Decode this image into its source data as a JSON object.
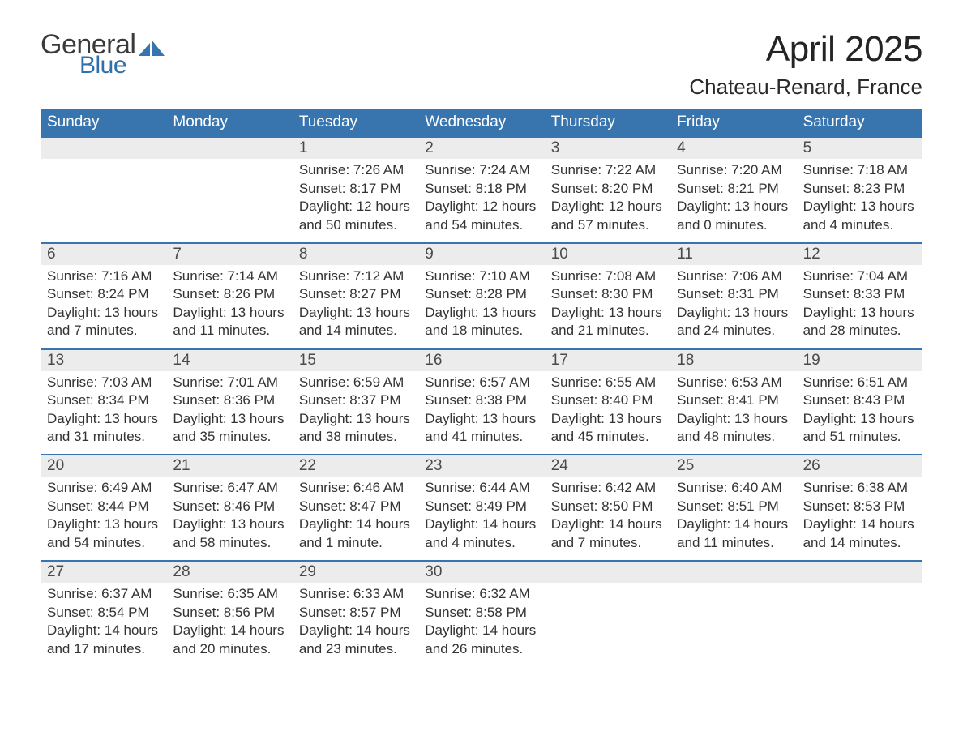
{
  "brand": {
    "word1": "General",
    "word2": "Blue",
    "word1_color": "#3a3a3a",
    "word2_color": "#2f6fab",
    "icon_color": "#3874ad"
  },
  "title": {
    "month": "April 2025",
    "location": "Chateau-Renard, France",
    "month_fontsize": 44,
    "location_fontsize": 26
  },
  "colors": {
    "header_bg": "#3874ad",
    "header_text": "#ffffff",
    "week_border": "#3874ad",
    "daynum_bg": "#ececec",
    "daynum_text": "#4a4a4a",
    "body_text": "#333333",
    "page_bg": "#ffffff"
  },
  "typography": {
    "font_family": "Segoe UI, Arial, Helvetica, sans-serif",
    "dow_fontsize": 19,
    "daynum_fontsize": 19,
    "body_fontsize": 17
  },
  "layout": {
    "columns": 7,
    "rows": 5,
    "cell_min_height": 128
  },
  "days_of_week": [
    "Sunday",
    "Monday",
    "Tuesday",
    "Wednesday",
    "Thursday",
    "Friday",
    "Saturday"
  ],
  "weeks": [
    [
      {
        "empty": true
      },
      {
        "empty": true
      },
      {
        "n": "1",
        "sr": "Sunrise: 7:26 AM",
        "ss": "Sunset: 8:17 PM",
        "dl1": "Daylight: 12 hours",
        "dl2": "and 50 minutes."
      },
      {
        "n": "2",
        "sr": "Sunrise: 7:24 AM",
        "ss": "Sunset: 8:18 PM",
        "dl1": "Daylight: 12 hours",
        "dl2": "and 54 minutes."
      },
      {
        "n": "3",
        "sr": "Sunrise: 7:22 AM",
        "ss": "Sunset: 8:20 PM",
        "dl1": "Daylight: 12 hours",
        "dl2": "and 57 minutes."
      },
      {
        "n": "4",
        "sr": "Sunrise: 7:20 AM",
        "ss": "Sunset: 8:21 PM",
        "dl1": "Daylight: 13 hours",
        "dl2": "and 0 minutes."
      },
      {
        "n": "5",
        "sr": "Sunrise: 7:18 AM",
        "ss": "Sunset: 8:23 PM",
        "dl1": "Daylight: 13 hours",
        "dl2": "and 4 minutes."
      }
    ],
    [
      {
        "n": "6",
        "sr": "Sunrise: 7:16 AM",
        "ss": "Sunset: 8:24 PM",
        "dl1": "Daylight: 13 hours",
        "dl2": "and 7 minutes."
      },
      {
        "n": "7",
        "sr": "Sunrise: 7:14 AM",
        "ss": "Sunset: 8:26 PM",
        "dl1": "Daylight: 13 hours",
        "dl2": "and 11 minutes."
      },
      {
        "n": "8",
        "sr": "Sunrise: 7:12 AM",
        "ss": "Sunset: 8:27 PM",
        "dl1": "Daylight: 13 hours",
        "dl2": "and 14 minutes."
      },
      {
        "n": "9",
        "sr": "Sunrise: 7:10 AM",
        "ss": "Sunset: 8:28 PM",
        "dl1": "Daylight: 13 hours",
        "dl2": "and 18 minutes."
      },
      {
        "n": "10",
        "sr": "Sunrise: 7:08 AM",
        "ss": "Sunset: 8:30 PM",
        "dl1": "Daylight: 13 hours",
        "dl2": "and 21 minutes."
      },
      {
        "n": "11",
        "sr": "Sunrise: 7:06 AM",
        "ss": "Sunset: 8:31 PM",
        "dl1": "Daylight: 13 hours",
        "dl2": "and 24 minutes."
      },
      {
        "n": "12",
        "sr": "Sunrise: 7:04 AM",
        "ss": "Sunset: 8:33 PM",
        "dl1": "Daylight: 13 hours",
        "dl2": "and 28 minutes."
      }
    ],
    [
      {
        "n": "13",
        "sr": "Sunrise: 7:03 AM",
        "ss": "Sunset: 8:34 PM",
        "dl1": "Daylight: 13 hours",
        "dl2": "and 31 minutes."
      },
      {
        "n": "14",
        "sr": "Sunrise: 7:01 AM",
        "ss": "Sunset: 8:36 PM",
        "dl1": "Daylight: 13 hours",
        "dl2": "and 35 minutes."
      },
      {
        "n": "15",
        "sr": "Sunrise: 6:59 AM",
        "ss": "Sunset: 8:37 PM",
        "dl1": "Daylight: 13 hours",
        "dl2": "and 38 minutes."
      },
      {
        "n": "16",
        "sr": "Sunrise: 6:57 AM",
        "ss": "Sunset: 8:38 PM",
        "dl1": "Daylight: 13 hours",
        "dl2": "and 41 minutes."
      },
      {
        "n": "17",
        "sr": "Sunrise: 6:55 AM",
        "ss": "Sunset: 8:40 PM",
        "dl1": "Daylight: 13 hours",
        "dl2": "and 45 minutes."
      },
      {
        "n": "18",
        "sr": "Sunrise: 6:53 AM",
        "ss": "Sunset: 8:41 PM",
        "dl1": "Daylight: 13 hours",
        "dl2": "and 48 minutes."
      },
      {
        "n": "19",
        "sr": "Sunrise: 6:51 AM",
        "ss": "Sunset: 8:43 PM",
        "dl1": "Daylight: 13 hours",
        "dl2": "and 51 minutes."
      }
    ],
    [
      {
        "n": "20",
        "sr": "Sunrise: 6:49 AM",
        "ss": "Sunset: 8:44 PM",
        "dl1": "Daylight: 13 hours",
        "dl2": "and 54 minutes."
      },
      {
        "n": "21",
        "sr": "Sunrise: 6:47 AM",
        "ss": "Sunset: 8:46 PM",
        "dl1": "Daylight: 13 hours",
        "dl2": "and 58 minutes."
      },
      {
        "n": "22",
        "sr": "Sunrise: 6:46 AM",
        "ss": "Sunset: 8:47 PM",
        "dl1": "Daylight: 14 hours",
        "dl2": "and 1 minute."
      },
      {
        "n": "23",
        "sr": "Sunrise: 6:44 AM",
        "ss": "Sunset: 8:49 PM",
        "dl1": "Daylight: 14 hours",
        "dl2": "and 4 minutes."
      },
      {
        "n": "24",
        "sr": "Sunrise: 6:42 AM",
        "ss": "Sunset: 8:50 PM",
        "dl1": "Daylight: 14 hours",
        "dl2": "and 7 minutes."
      },
      {
        "n": "25",
        "sr": "Sunrise: 6:40 AM",
        "ss": "Sunset: 8:51 PM",
        "dl1": "Daylight: 14 hours",
        "dl2": "and 11 minutes."
      },
      {
        "n": "26",
        "sr": "Sunrise: 6:38 AM",
        "ss": "Sunset: 8:53 PM",
        "dl1": "Daylight: 14 hours",
        "dl2": "and 14 minutes."
      }
    ],
    [
      {
        "n": "27",
        "sr": "Sunrise: 6:37 AM",
        "ss": "Sunset: 8:54 PM",
        "dl1": "Daylight: 14 hours",
        "dl2": "and 17 minutes."
      },
      {
        "n": "28",
        "sr": "Sunrise: 6:35 AM",
        "ss": "Sunset: 8:56 PM",
        "dl1": "Daylight: 14 hours",
        "dl2": "and 20 minutes."
      },
      {
        "n": "29",
        "sr": "Sunrise: 6:33 AM",
        "ss": "Sunset: 8:57 PM",
        "dl1": "Daylight: 14 hours",
        "dl2": "and 23 minutes."
      },
      {
        "n": "30",
        "sr": "Sunrise: 6:32 AM",
        "ss": "Sunset: 8:58 PM",
        "dl1": "Daylight: 14 hours",
        "dl2": "and 26 minutes."
      },
      {
        "empty": true
      },
      {
        "empty": true
      },
      {
        "empty": true
      }
    ]
  ]
}
